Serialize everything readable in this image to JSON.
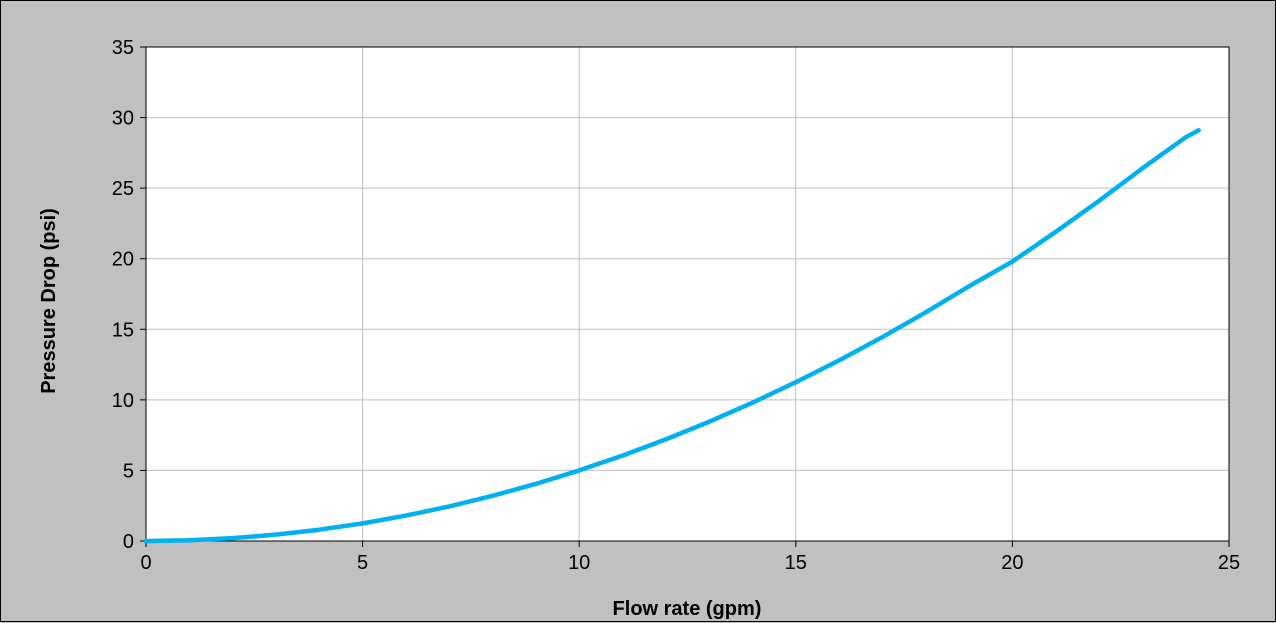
{
  "chart_data": {
    "type": "line",
    "xlabel": "Flow rate (gpm)",
    "ylabel": "Pressure Drop (psi)",
    "xlim": [
      0,
      25
    ],
    "ylim": [
      0,
      35
    ],
    "x_ticks": [
      0,
      5,
      10,
      15,
      20,
      25
    ],
    "y_ticks": [
      0,
      5,
      10,
      15,
      20,
      25,
      30,
      35
    ],
    "grid": true,
    "legend": "none",
    "series": [
      {
        "color": "#00b0f0",
        "x": [
          0,
          1,
          2,
          3,
          4,
          5,
          6,
          7,
          8,
          9,
          10,
          11,
          12,
          13,
          14,
          15,
          16,
          17,
          18,
          19,
          20,
          21,
          22,
          23,
          24,
          24.3
        ],
        "y": [
          0,
          0.05,
          0.2,
          0.45,
          0.8,
          1.25,
          1.8,
          2.45,
          3.2,
          4.05,
          5.0,
          6.05,
          7.2,
          8.45,
          9.8,
          11.25,
          12.8,
          14.45,
          16.2,
          18.05,
          19.8,
          21.9,
          24.1,
          26.4,
          28.6,
          29.1
        ]
      }
    ]
  }
}
